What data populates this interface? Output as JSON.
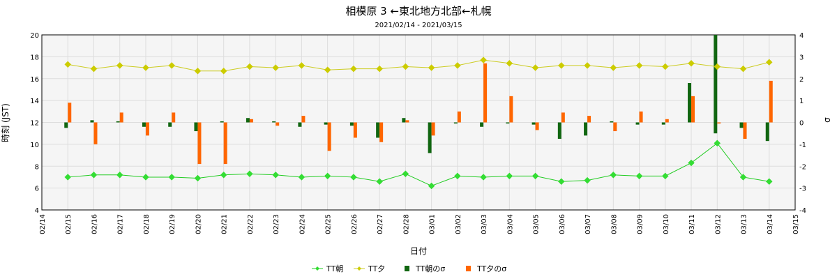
{
  "chart_data": {
    "type": "line",
    "title": "相模原 3 ←東北地方北部←札幌",
    "subtitle": "2021/02/14 - 2021/03/15",
    "xlabel": "日付",
    "ylabel": "時刻 (JST)",
    "y2label": "σ",
    "ylim": [
      4,
      20
    ],
    "y_ticks": [
      4,
      6,
      8,
      10,
      12,
      14,
      16,
      18,
      20
    ],
    "y2lim": [
      -4,
      4
    ],
    "y2_ticks": [
      -4,
      -3,
      -2,
      -1,
      0,
      1,
      2,
      3,
      4
    ],
    "x_ticks": [
      "02/14",
      "02/15",
      "02/16",
      "02/17",
      "02/18",
      "02/19",
      "02/20",
      "02/21",
      "02/22",
      "02/23",
      "02/24",
      "02/25",
      "02/26",
      "02/27",
      "02/28",
      "03/01",
      "03/02",
      "03/03",
      "03/04",
      "03/05",
      "03/06",
      "03/07",
      "03/08",
      "03/09",
      "03/10",
      "03/11",
      "03/12",
      "03/13",
      "03/14",
      "03/15"
    ],
    "categories": [
      "02/15",
      "02/16",
      "02/17",
      "02/18",
      "02/19",
      "02/20",
      "02/21",
      "02/22",
      "02/23",
      "02/24",
      "02/25",
      "02/26",
      "02/27",
      "02/28",
      "03/01",
      "03/02",
      "03/03",
      "03/04",
      "03/05",
      "03/06",
      "03/07",
      "03/08",
      "03/09",
      "03/10",
      "03/11",
      "03/12",
      "03/13",
      "03/14"
    ],
    "grid": true,
    "legend_position": "bottom",
    "series": [
      {
        "name": "TT朝",
        "kind": "line",
        "axis": "left",
        "color": "#22cc22",
        "marker_color": "#33dd33",
        "values": [
          7.0,
          7.2,
          7.2,
          7.0,
          7.0,
          6.9,
          7.2,
          7.3,
          7.2,
          7.0,
          7.1,
          7.0,
          6.6,
          7.3,
          6.2,
          7.1,
          7.0,
          7.1,
          7.1,
          6.6,
          6.7,
          7.2,
          7.1,
          7.1,
          8.3,
          10.1,
          7.0,
          6.6
        ]
      },
      {
        "name": "TT夕",
        "kind": "line",
        "axis": "left",
        "color": "#cccc22",
        "marker_color": "#cccc00",
        "values": [
          17.3,
          16.9,
          17.2,
          17.0,
          17.2,
          16.7,
          16.7,
          17.1,
          17.0,
          17.2,
          16.8,
          16.9,
          16.9,
          17.1,
          17.0,
          17.2,
          17.7,
          17.4,
          17.0,
          17.2,
          17.2,
          17.0,
          17.2,
          17.1,
          17.4,
          17.1,
          16.9,
          17.5
        ]
      },
      {
        "name": "TT朝のσ",
        "kind": "bar",
        "axis": "right",
        "color": "#116611",
        "values": [
          -0.25,
          0.1,
          0.05,
          -0.2,
          -0.2,
          -0.4,
          0.05,
          0.2,
          0.05,
          -0.2,
          -0.1,
          -0.15,
          -0.7,
          0.2,
          -1.4,
          -0.05,
          -0.2,
          -0.05,
          -0.1,
          -0.75,
          -0.6,
          0.05,
          -0.1,
          -0.1,
          1.8,
          4.5,
          -0.25,
          -0.85
        ]
      },
      {
        "name": "TT夕のσ",
        "kind": "bar",
        "axis": "right",
        "color": "#ff6600",
        "values": [
          0.9,
          -1.0,
          0.45,
          -0.6,
          0.45,
          -1.9,
          -1.9,
          0.15,
          -0.15,
          0.3,
          -1.3,
          -0.7,
          -0.9,
          0.1,
          -0.6,
          0.5,
          2.7,
          1.2,
          -0.35,
          0.45,
          0.3,
          -0.4,
          0.5,
          0.15,
          1.2,
          -0.05,
          -0.75,
          1.9
        ]
      }
    ]
  }
}
